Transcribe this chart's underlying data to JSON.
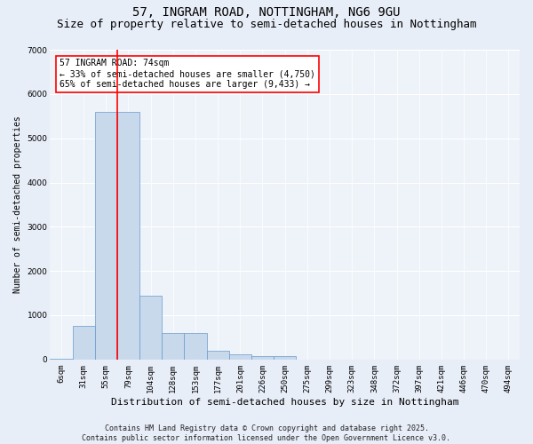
{
  "title_line1": "57, INGRAM ROAD, NOTTINGHAM, NG6 9GU",
  "title_line2": "Size of property relative to semi-detached houses in Nottingham",
  "xlabel": "Distribution of semi-detached houses by size in Nottingham",
  "ylabel": "Number of semi-detached properties",
  "categories": [
    "6sqm",
    "31sqm",
    "55sqm",
    "79sqm",
    "104sqm",
    "128sqm",
    "153sqm",
    "177sqm",
    "201sqm",
    "226sqm",
    "250sqm",
    "275sqm",
    "299sqm",
    "323sqm",
    "348sqm",
    "372sqm",
    "397sqm",
    "421sqm",
    "446sqm",
    "470sqm",
    "494sqm"
  ],
  "values": [
    10,
    750,
    5600,
    5600,
    1450,
    600,
    600,
    200,
    125,
    80,
    70,
    0,
    0,
    0,
    0,
    0,
    0,
    0,
    0,
    0,
    0
  ],
  "bar_color": "#c9d9ec",
  "bar_edge_color": "#6699cc",
  "vline_color": "red",
  "vline_x": 2.5,
  "annotation_text": "57 INGRAM ROAD: 74sqm\n← 33% of semi-detached houses are smaller (4,750)\n65% of semi-detached houses are larger (9,433) →",
  "annotation_box_color": "white",
  "annotation_box_edge": "red",
  "ylim": [
    0,
    7000
  ],
  "yticks": [
    0,
    1000,
    2000,
    3000,
    4000,
    5000,
    6000,
    7000
  ],
  "footer": "Contains HM Land Registry data © Crown copyright and database right 2025.\nContains public sector information licensed under the Open Government Licence v3.0.",
  "bg_color": "#e8eef8",
  "plot_bg_color": "#eef3fa",
  "title_fontsize": 10,
  "subtitle_fontsize": 9,
  "ylabel_fontsize": 7,
  "xlabel_fontsize": 8,
  "tick_fontsize": 6.5,
  "footer_fontsize": 6,
  "annot_fontsize": 7
}
